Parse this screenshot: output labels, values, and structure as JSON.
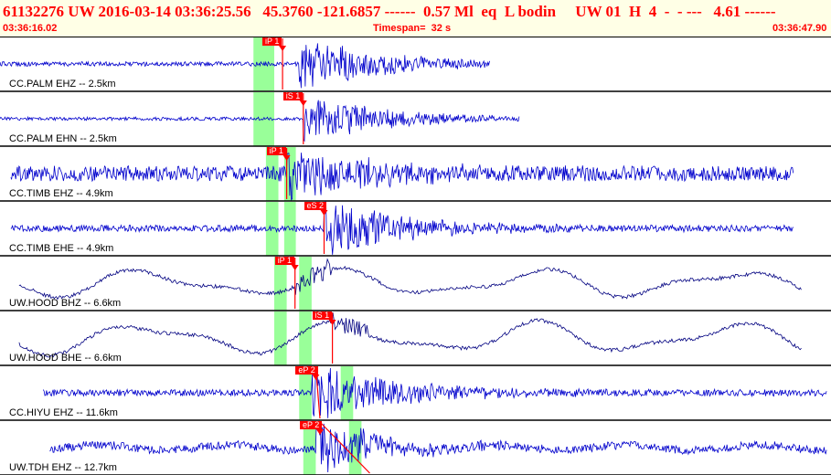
{
  "header": {
    "event_line": "61132276 UW 2016-03-14 03:36:25.56   45.3760 -121.6857 ------  0.57 Ml  eq  L bodin     UW 01  H  4  -  - ---   4.61 ------",
    "start_time": "03:36:16.02",
    "timespan": "Timespan=  32 s",
    "end_time": "03:36:47.90"
  },
  "colors": {
    "header_bg": "#ffffe6",
    "header_text": "#ff0000",
    "trace_blue": "#0000cc",
    "trace_black": "#000080",
    "pick": "#ff0000",
    "window": "#99ff99"
  },
  "channels": [
    {
      "label": "CC.PALM EHZ -- 2.5km",
      "pick": "iP 1",
      "color": "blue",
      "kind": "event",
      "start": 0.0,
      "end": 0.59,
      "onset": 0.36,
      "amp": 0.08,
      "peak": 0.85,
      "green": [
        [
          0.305,
          0.33
        ]
      ],
      "pick_t": 0.34,
      "pick_to": 0.34
    },
    {
      "label": "CC.PALM EHN -- 2.5km",
      "pick": "iS 1",
      "color": "blue",
      "kind": "event",
      "start": 0.0,
      "end": 0.625,
      "onset": 0.365,
      "amp": 0.06,
      "peak": 0.7,
      "green": [
        [
          0.305,
          0.33
        ]
      ],
      "pick_t": 0.365,
      "pick_to": 0.365
    },
    {
      "label": "CC.TIMB EHZ -- 4.9km",
      "pick": "iP 1",
      "color": "blue",
      "kind": "event",
      "start": 0.013,
      "end": 0.955,
      "onset": 0.345,
      "amp": 0.28,
      "peak": 0.8,
      "green": [
        [
          0.32,
          0.335
        ],
        [
          0.342,
          0.356
        ]
      ],
      "pick_t": 0.345,
      "pick_to": 0.345
    },
    {
      "label": "CC.TIMB EHE -- 4.9km",
      "pick": "eS 2",
      "color": "blue",
      "kind": "event",
      "start": 0.013,
      "end": 0.955,
      "onset": 0.39,
      "amp": 0.12,
      "peak": 0.85,
      "green": [
        [
          0.32,
          0.335
        ],
        [
          0.342,
          0.356
        ]
      ],
      "pick_t": 0.39,
      "pick_to": 0.39
    },
    {
      "label": "UW.HOOD BHZ -- 6.6km",
      "pick": "iP 1",
      "color": "black",
      "kind": "wave",
      "start": 0.023,
      "end": 0.965,
      "onset": 0.355,
      "amp": 0.35,
      "peak": 0.55,
      "green": [
        [
          0.33,
          0.345
        ],
        [
          0.36,
          0.375
        ]
      ],
      "pick_t": 0.355,
      "pick_to": 0.355
    },
    {
      "label": "UW.HOOD BHE -- 6.6km",
      "pick": "iS 1",
      "color": "black",
      "kind": "wave",
      "start": 0.023,
      "end": 0.965,
      "onset": 0.4,
      "amp": 0.4,
      "peak": 0.55,
      "green": [
        [
          0.33,
          0.345
        ],
        [
          0.36,
          0.375
        ]
      ],
      "pick_t": 0.4,
      "pick_to": 0.4
    },
    {
      "label": "CC.HIYU EHZ -- 11.6km",
      "pick": "eP 2",
      "color": "blue",
      "kind": "event",
      "start": 0.052,
      "end": 0.995,
      "onset": 0.375,
      "amp": 0.12,
      "peak": 0.85,
      "green": [
        [
          0.36,
          0.375
        ],
        [
          0.41,
          0.425
        ]
      ],
      "pick_t": 0.38,
      "pick_to": 0.385
    },
    {
      "label": "UW.TDH EHZ -- 12.7km",
      "pick": "eP 2",
      "color": "blue",
      "kind": "noisy",
      "start": 0.06,
      "end": 0.995,
      "onset": 0.38,
      "amp": 0.25,
      "peak": 0.7,
      "green": [
        [
          0.365,
          0.38
        ],
        [
          0.42,
          0.435
        ]
      ],
      "pick_t": 0.385,
      "pick_to": 0.445
    }
  ]
}
